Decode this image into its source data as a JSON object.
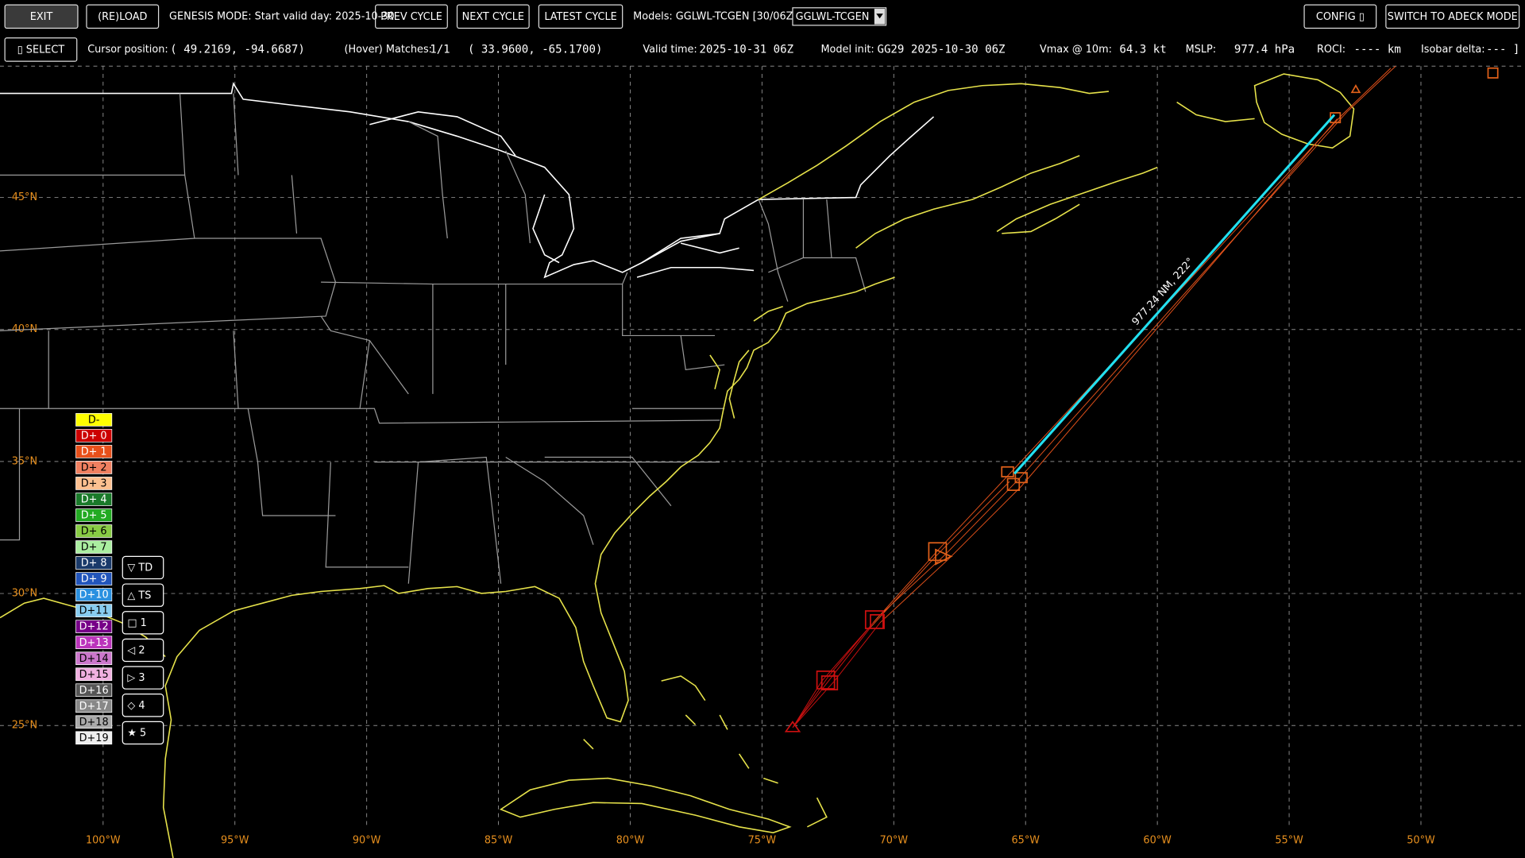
{
  "toolbar": {
    "buttons": [
      "EXIT",
      "(RE)LOAD",
      "PREV CYCLE",
      "NEXT CYCLE",
      "LATEST CYCLE",
      "CONFIG ▯",
      "SWITCH TO ADECK MODE"
    ],
    "genesis": "GENESIS MODE: Start valid day: 2025-10-30",
    "models": "Models: GGLWL-TCGEN [30/06Z]",
    "model_select": "GGLWL-TCGEN"
  },
  "status": {
    "select": "▯ SELECT",
    "items": [
      {
        "label": "Cursor position:",
        "value": "( 49.2169,  -94.6687)"
      },
      {
        "label": "(Hover) Matches:",
        "value": "1/1"
      },
      {
        "label": "",
        "value": "( 33.9600,  -65.1700)"
      },
      {
        "label": "Valid time:",
        "value": "2025-10-31 06Z"
      },
      {
        "label": "Model init:",
        "value": "GG29 2025-10-30 06Z"
      },
      {
        "label": "Vmax @ 10m:",
        "value": "64.3 kt"
      },
      {
        "label": "MSLP:",
        "value": "977.4 hPa"
      },
      {
        "label": "ROCI:",
        "value": "---- km"
      },
      {
        "label": "Isobar delta:",
        "value": "--- ]"
      }
    ]
  },
  "map": {
    "lat_labels": [
      "45°N",
      "40°N",
      "35°N",
      "30°N",
      "25°N"
    ],
    "lon_labels": [
      "100°W",
      "95°W",
      "90°W",
      "85°W",
      "80°W",
      "75°W",
      "70°W",
      "65°W",
      "60°W",
      "55°W",
      "50°W"
    ],
    "measure": "977.24 NM, 222°"
  },
  "legend": {
    "days": [
      {
        "label": "D-",
        "color": "#ffff00"
      },
      {
        "label": "D+ 0",
        "color": "#cc0000"
      },
      {
        "label": "D+ 1",
        "color": "#e8501a"
      },
      {
        "label": "D+ 2",
        "color": "#f08060"
      },
      {
        "label": "D+ 3",
        "color": "#fcc090"
      },
      {
        "label": "D+ 4",
        "color": "#1a7a2a"
      },
      {
        "label": "D+ 5",
        "color": "#22aa22"
      },
      {
        "label": "D+ 6",
        "color": "#88cc44"
      },
      {
        "label": "D+ 7",
        "color": "#aaeea0"
      },
      {
        "label": "D+ 8",
        "color": "#1a3a6a"
      },
      {
        "label": "D+ 9",
        "color": "#2255bb"
      },
      {
        "label": "D+10",
        "color": "#2a90e0"
      },
      {
        "label": "D+11",
        "color": "#88ccf0"
      },
      {
        "label": "D+12",
        "color": "#770088"
      },
      {
        "label": "D+13",
        "color": "#bb33bb"
      },
      {
        "label": "D+14",
        "color": "#cc77cc"
      },
      {
        "label": "D+15",
        "color": "#f0b0e0"
      },
      {
        "label": "D+16",
        "color": "#555555"
      },
      {
        "label": "D+17",
        "color": "#888888"
      },
      {
        "label": "D+18",
        "color": "#aaaaaa"
      },
      {
        "label": "D+19",
        "color": "#eeeeee"
      }
    ],
    "intensity": [
      "▽ TD",
      "△ TS",
      "□ 1",
      "◁ 2",
      "▷ 3",
      "◇ 4",
      "★ 5"
    ]
  }
}
